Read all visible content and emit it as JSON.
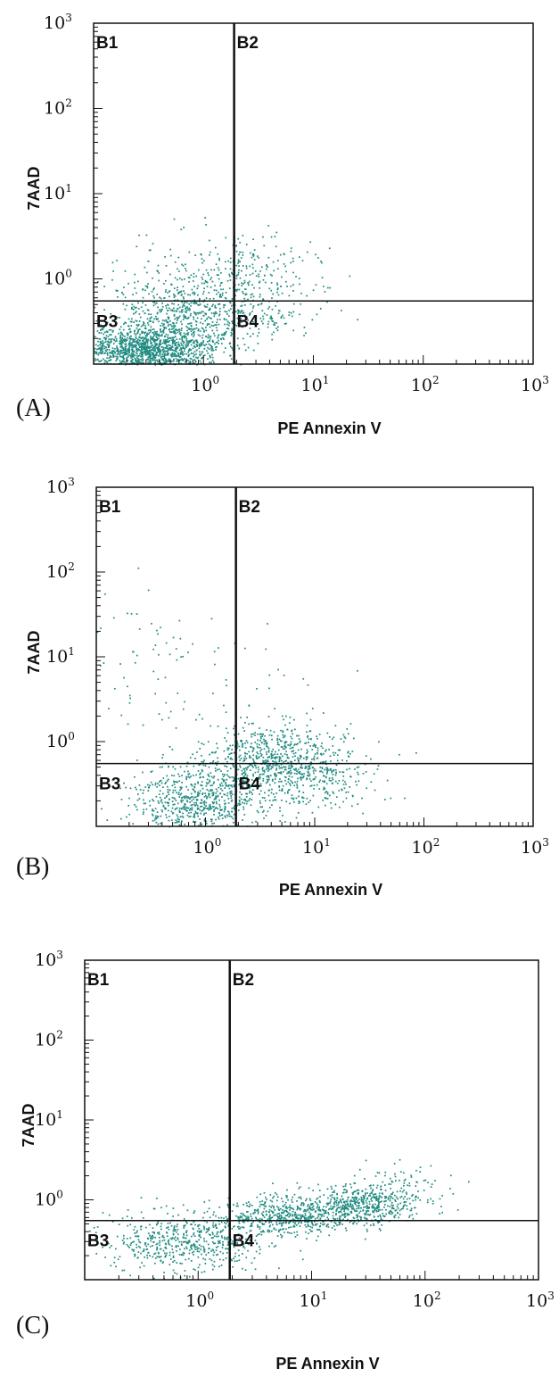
{
  "colors": {
    "dots": "#1f8a80",
    "axis": "#111111"
  },
  "chart_data": [
    {
      "type": "scatter",
      "panel_label": "(A)",
      "xlabel": "PE Annexin V",
      "ylabel": "7AAD",
      "x_scale": "log",
      "y_scale": "log",
      "xlim": [
        0.1,
        1000
      ],
      "ylim": [
        0.1,
        1000
      ],
      "x_ticks": [
        {
          "base": "10",
          "exp": "0"
        },
        {
          "base": "10",
          "exp": "1"
        },
        {
          "base": "10",
          "exp": "2"
        },
        {
          "base": "10",
          "exp": "3"
        }
      ],
      "y_ticks": [
        {
          "base": "10",
          "exp": "0"
        },
        {
          "base": "10",
          "exp": "1"
        },
        {
          "base": "10",
          "exp": "2"
        },
        {
          "base": "10",
          "exp": "3"
        }
      ],
      "gate": {
        "x": 1.9,
        "y": 0.55
      },
      "quadrants": [
        "B1",
        "B2",
        "B3",
        "B4"
      ],
      "grid": false,
      "clusters": [
        {
          "cx": 0.3,
          "cy": 0.15,
          "sx": 0.3,
          "sy": 0.15,
          "n": 1400
        },
        {
          "cx": 0.6,
          "cy": 0.35,
          "sx": 0.35,
          "sy": 0.25,
          "n": 500
        },
        {
          "cx": 1.3,
          "cy": 0.8,
          "sx": 0.35,
          "sy": 0.25,
          "n": 200
        },
        {
          "cx": 3.5,
          "cy": 1.3,
          "sx": 0.3,
          "sy": 0.25,
          "n": 150
        },
        {
          "cx": 3.0,
          "cy": 0.35,
          "sx": 0.25,
          "sy": 0.12,
          "n": 90
        },
        {
          "cx": 0.3,
          "cy": 1.2,
          "sx": 0.3,
          "sy": 0.3,
          "n": 35
        }
      ]
    },
    {
      "type": "scatter",
      "panel_label": "(B)",
      "xlabel": "PE Annexin V",
      "ylabel": "7AAD",
      "x_scale": "log",
      "y_scale": "log",
      "xlim": [
        0.1,
        1000
      ],
      "ylim": [
        0.1,
        1000
      ],
      "x_ticks": [
        {
          "base": "10",
          "exp": "0"
        },
        {
          "base": "10",
          "exp": "1"
        },
        {
          "base": "10",
          "exp": "2"
        },
        {
          "base": "10",
          "exp": "3"
        }
      ],
      "y_ticks": [
        {
          "base": "10",
          "exp": "0"
        },
        {
          "base": "10",
          "exp": "1"
        },
        {
          "base": "10",
          "exp": "2"
        },
        {
          "base": "10",
          "exp": "3"
        }
      ],
      "gate": {
        "x": 1.9,
        "y": 0.55
      },
      "quadrants": [
        "B1",
        "B2",
        "B3",
        "B4"
      ],
      "grid": false,
      "clusters": [
        {
          "cx": 0.8,
          "cy": 0.2,
          "sx": 0.3,
          "sy": 0.2,
          "n": 650
        },
        {
          "cx": 4.0,
          "cy": 0.6,
          "sx": 0.35,
          "sy": 0.22,
          "n": 700
        },
        {
          "cx": 10.0,
          "cy": 0.35,
          "sx": 0.3,
          "sy": 0.2,
          "n": 180
        },
        {
          "cx": 0.3,
          "cy": 12.0,
          "sx": 0.25,
          "sy": 0.4,
          "n": 45
        },
        {
          "cx": 2.0,
          "cy": 3.0,
          "sx": 0.5,
          "sy": 0.5,
          "n": 60
        }
      ]
    },
    {
      "type": "scatter",
      "panel_label": "(C)",
      "xlabel": "PE Annexin V",
      "ylabel": "7AAD",
      "x_scale": "log",
      "y_scale": "log",
      "xlim": [
        0.1,
        1000
      ],
      "ylim": [
        0.1,
        1000
      ],
      "x_ticks": [
        {
          "base": "10",
          "exp": "0"
        },
        {
          "base": "10",
          "exp": "1"
        },
        {
          "base": "10",
          "exp": "2"
        },
        {
          "base": "10",
          "exp": "3"
        }
      ],
      "y_ticks": [
        {
          "base": "10",
          "exp": "0"
        },
        {
          "base": "10",
          "exp": "1"
        },
        {
          "base": "10",
          "exp": "2"
        },
        {
          "base": "10",
          "exp": "3"
        }
      ],
      "gate": {
        "x": 1.9,
        "y": 0.55
      },
      "quadrants": [
        "B1",
        "B2",
        "B3",
        "B4"
      ],
      "grid": false,
      "clusters": [
        {
          "cx": 0.8,
          "cy": 0.3,
          "sx": 0.35,
          "sy": 0.18,
          "n": 550
        },
        {
          "cx": 6.0,
          "cy": 0.65,
          "sx": 0.35,
          "sy": 0.12,
          "n": 600
        },
        {
          "cx": 30.0,
          "cy": 0.9,
          "sx": 0.25,
          "sy": 0.12,
          "n": 450
        },
        {
          "cx": 60.0,
          "cy": 1.5,
          "sx": 0.2,
          "sy": 0.15,
          "n": 80
        }
      ]
    }
  ]
}
